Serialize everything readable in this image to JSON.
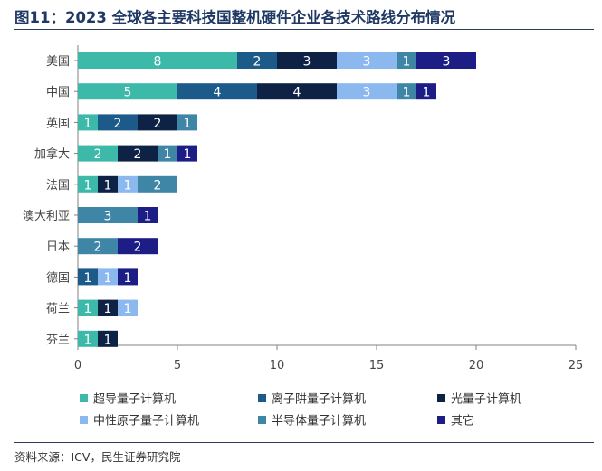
{
  "title": "图11：2023 全球各主要科技国整机硬件企业各技术路线分布情况",
  "source": "资料来源：ICV，民生证券研究院",
  "chart_data": {
    "type": "bar",
    "orientation": "horizontal",
    "stacked": true,
    "categories": [
      "美国",
      "中国",
      "英国",
      "加拿大",
      "法国",
      "澳大利亚",
      "日本",
      "德国",
      "荷兰",
      "芬兰"
    ],
    "series": [
      {
        "name": "超导量子计算机",
        "color": "#3cb9a9",
        "values": [
          8,
          5,
          1,
          2,
          1,
          0,
          0,
          0,
          1,
          1
        ]
      },
      {
        "name": "离子阱量子计算机",
        "color": "#1c5a8a",
        "values": [
          2,
          4,
          2,
          0,
          0,
          0,
          0,
          1,
          0,
          0
        ]
      },
      {
        "name": "光量子计算机",
        "color": "#0d2244",
        "values": [
          3,
          4,
          2,
          2,
          1,
          0,
          0,
          0,
          1,
          1
        ]
      },
      {
        "name": "中性原子量子计算机",
        "color": "#8ab8ef",
        "values": [
          3,
          3,
          0,
          0,
          1,
          0,
          0,
          1,
          1,
          0
        ]
      },
      {
        "name": "半导体量子计算机",
        "color": "#3f86a6",
        "values": [
          1,
          1,
          1,
          1,
          2,
          3,
          2,
          0,
          0,
          0
        ]
      },
      {
        "name": "其它",
        "color": "#1c1e85",
        "values": [
          3,
          1,
          0,
          1,
          0,
          1,
          2,
          1,
          0,
          0
        ]
      }
    ],
    "xlim": [
      0,
      25
    ],
    "xticks": [
      0,
      5,
      10,
      15,
      20,
      25
    ],
    "grid": false,
    "legend_position": "bottom"
  }
}
